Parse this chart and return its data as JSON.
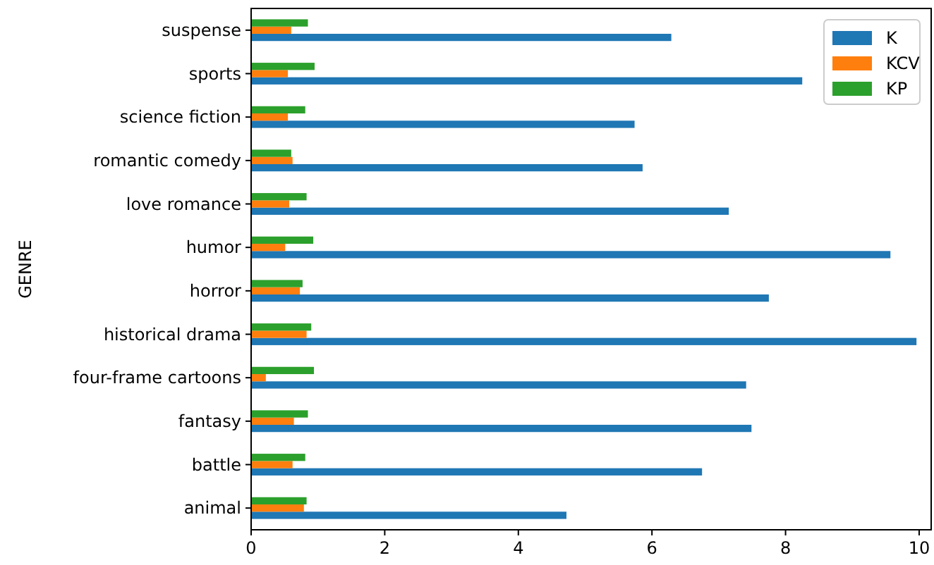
{
  "chart_data": {
    "type": "bar",
    "orientation": "horizontal",
    "ylabel": "GENRE",
    "categories": [
      "suspense",
      "sports",
      "science fiction",
      "romantic comedy",
      "love romance",
      "humor",
      "horror",
      "historical drama",
      "four-frame cartoons",
      "fantasy",
      "battle",
      "animal"
    ],
    "series": [
      {
        "name": "K",
        "color": "#1f77b4",
        "values": [
          6.29,
          8.25,
          5.74,
          5.86,
          7.15,
          9.57,
          7.75,
          9.96,
          7.41,
          7.49,
          6.75,
          4.72
        ]
      },
      {
        "name": "KCV",
        "color": "#ff7f0e",
        "values": [
          0.6,
          0.55,
          0.55,
          0.62,
          0.57,
          0.51,
          0.73,
          0.83,
          0.22,
          0.64,
          0.62,
          0.79
        ]
      },
      {
        "name": "KP",
        "color": "#2ca02c",
        "values": [
          0.85,
          0.95,
          0.81,
          0.6,
          0.83,
          0.93,
          0.77,
          0.9,
          0.94,
          0.85,
          0.81,
          0.83
        ]
      }
    ],
    "xlim": [
      0,
      10.18
    ],
    "xticks": [
      0,
      2,
      4,
      6,
      8,
      10
    ],
    "grid": false,
    "legend": "top right"
  }
}
